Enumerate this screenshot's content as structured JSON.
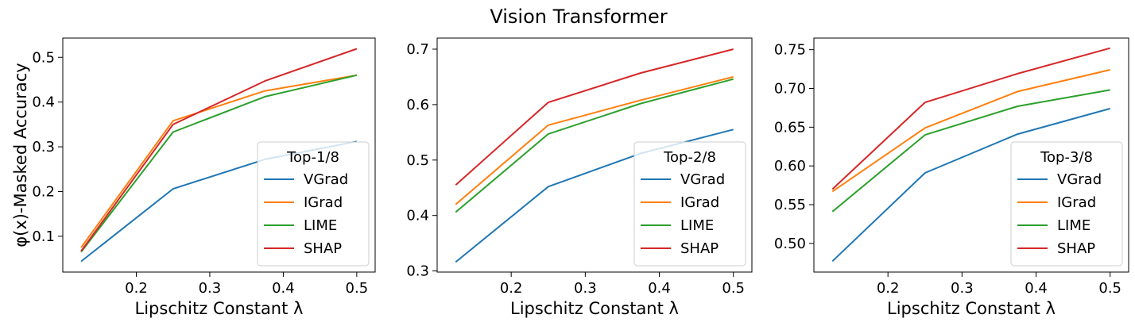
{
  "suptitle": "Vision Transformer",
  "colors": {
    "VGrad": "#1f77b4",
    "IGrad": "#ff7f0e",
    "LIME": "#2ca02c",
    "SHAP": "#d62728"
  },
  "chart_data": [
    {
      "type": "line",
      "xlabel": "Lipschitz Constant λ",
      "ylabel": "φ(x)-Masked Accuracy",
      "x": [
        0.125,
        0.25,
        0.375,
        0.5
      ],
      "xlim": [
        0.1,
        0.525
      ],
      "ylim": [
        0.02,
        0.543
      ],
      "xticks": [
        0.2,
        0.3,
        0.4,
        0.5
      ],
      "yticks": [
        0.1,
        0.2,
        0.3,
        0.4,
        0.5
      ],
      "xtick_labels": [
        "0.2",
        "0.3",
        "0.4",
        "0.5"
      ],
      "ytick_labels": [
        "0.1",
        "0.2",
        "0.3",
        "0.4",
        "0.5"
      ],
      "legend_title": "Top-1/8",
      "legend_position": "lower right",
      "series": [
        {
          "name": "VGrad",
          "values": [
            0.044,
            0.206,
            0.272,
            0.312
          ]
        },
        {
          "name": "IGrad",
          "values": [
            0.075,
            0.358,
            0.425,
            0.46
          ]
        },
        {
          "name": "LIME",
          "values": [
            0.065,
            0.333,
            0.412,
            0.46
          ]
        },
        {
          "name": "SHAP",
          "values": [
            0.067,
            0.35,
            0.447,
            0.519
          ]
        }
      ]
    },
    {
      "type": "line",
      "xlabel": "Lipschitz Constant λ",
      "ylabel": "",
      "x": [
        0.125,
        0.25,
        0.375,
        0.5
      ],
      "xlim": [
        0.1,
        0.525
      ],
      "ylim": [
        0.298,
        0.72
      ],
      "xticks": [
        0.2,
        0.3,
        0.4,
        0.5
      ],
      "yticks": [
        0.3,
        0.4,
        0.5,
        0.6,
        0.7
      ],
      "xtick_labels": [
        "0.2",
        "0.3",
        "0.4",
        "0.5"
      ],
      "ytick_labels": [
        "0.3",
        "0.4",
        "0.5",
        "0.6",
        "0.7"
      ],
      "legend_title": "Top-2/8",
      "legend_position": "lower right",
      "series": [
        {
          "name": "VGrad",
          "values": [
            0.316,
            0.452,
            0.512,
            0.555
          ]
        },
        {
          "name": "IGrad",
          "values": [
            0.42,
            0.563,
            0.608,
            0.65
          ]
        },
        {
          "name": "LIME",
          "values": [
            0.406,
            0.547,
            0.602,
            0.646
          ]
        },
        {
          "name": "SHAP",
          "values": [
            0.455,
            0.604,
            0.657,
            0.7
          ]
        }
      ]
    },
    {
      "type": "line",
      "xlabel": "Lipschitz Constant λ",
      "ylabel": "",
      "x": [
        0.125,
        0.25,
        0.375,
        0.5
      ],
      "xlim": [
        0.1,
        0.525
      ],
      "ylim": [
        0.463,
        0.765
      ],
      "xticks": [
        0.2,
        0.3,
        0.4,
        0.5
      ],
      "yticks": [
        0.5,
        0.55,
        0.6,
        0.65,
        0.7,
        0.75
      ],
      "xtick_labels": [
        "0.2",
        "0.3",
        "0.4",
        "0.5"
      ],
      "ytick_labels": [
        "0.50",
        "0.55",
        "0.60",
        "0.65",
        "0.70",
        "0.75"
      ],
      "legend_title": "Top-3/8",
      "legend_position": "lower right",
      "series": [
        {
          "name": "VGrad",
          "values": [
            0.477,
            0.591,
            0.641,
            0.674
          ]
        },
        {
          "name": "IGrad",
          "values": [
            0.567,
            0.649,
            0.696,
            0.724
          ]
        },
        {
          "name": "LIME",
          "values": [
            0.541,
            0.64,
            0.677,
            0.698
          ]
        },
        {
          "name": "SHAP",
          "values": [
            0.57,
            0.682,
            0.719,
            0.752
          ]
        }
      ]
    }
  ]
}
